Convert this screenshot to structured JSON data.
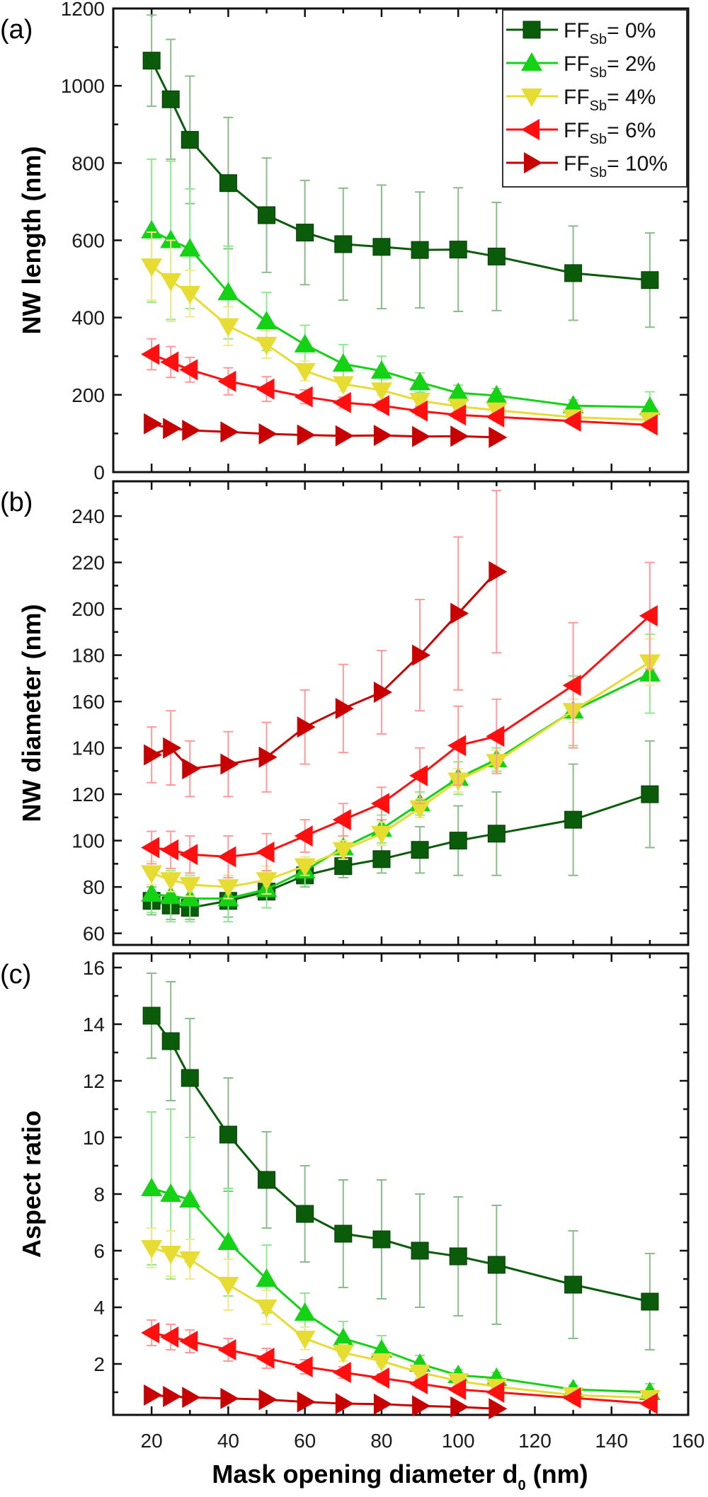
{
  "chart_data": [
    {
      "type": "line",
      "panel_label": "(a)",
      "title": "",
      "xlabel": "Mask opening diameter d0 (nm)",
      "ylabel": "NW length (nm)",
      "xlim": [
        10,
        160
      ],
      "ylim": [
        0,
        1200
      ],
      "yticks": [
        0,
        200,
        400,
        600,
        800,
        1000,
        1200
      ],
      "grid": false,
      "legend_position": "top-right",
      "series": [
        {
          "name": "FF_Sb= 0%",
          "x": [
            20,
            25,
            30,
            40,
            50,
            60,
            70,
            80,
            90,
            100,
            110,
            130,
            150
          ],
          "values": [
            1065,
            965,
            860,
            748,
            665,
            620,
            590,
            583,
            575,
            576,
            558,
            515,
            497
          ],
          "errors": [
            118,
            155,
            165,
            170,
            148,
            135,
            145,
            160,
            150,
            160,
            140,
            122,
            122
          ]
        },
        {
          "name": "FF_Sb= 2%",
          "x": [
            20,
            25,
            30,
            40,
            50,
            60,
            70,
            80,
            90,
            100,
            110,
            130,
            150
          ],
          "values": [
            625,
            600,
            578,
            465,
            390,
            330,
            280,
            262,
            232,
            205,
            198,
            172,
            168
          ],
          "errors": [
            185,
            205,
            155,
            120,
            75,
            50,
            50,
            38,
            25,
            20,
            18,
            15,
            40
          ]
        },
        {
          "name": "FF_Sb= 4%",
          "x": [
            20,
            25,
            30,
            40,
            50,
            60,
            70,
            80,
            90,
            100,
            110,
            130,
            150
          ],
          "values": [
            533,
            495,
            462,
            378,
            330,
            262,
            228,
            212,
            185,
            170,
            160,
            142,
            135
          ],
          "errors": [
            88,
            105,
            60,
            50,
            35,
            25,
            18,
            12,
            12,
            10,
            8,
            8,
            8
          ]
        },
        {
          "name": "FF_Sb= 6%",
          "x": [
            20,
            25,
            30,
            40,
            50,
            60,
            70,
            80,
            90,
            100,
            110,
            130,
            150
          ],
          "values": [
            305,
            285,
            265,
            235,
            215,
            195,
            180,
            172,
            158,
            148,
            143,
            132,
            122
          ],
          "errors": [
            40,
            40,
            32,
            35,
            32,
            18,
            14,
            12,
            12,
            10,
            8,
            8,
            6
          ]
        },
        {
          "name": "FF_Sb= 10%",
          "x": [
            20,
            25,
            30,
            40,
            50,
            60,
            70,
            80,
            90,
            100,
            110
          ],
          "values": [
            125,
            113,
            108,
            104,
            99,
            96,
            94,
            95,
            92,
            93,
            90
          ],
          "errors": [
            0,
            6,
            8,
            8,
            6,
            6,
            6,
            6,
            6,
            6,
            0
          ]
        }
      ]
    },
    {
      "type": "line",
      "panel_label": "(b)",
      "title": "",
      "xlabel": "Mask opening diameter d0 (nm)",
      "ylabel": "NW diameter (nm)",
      "xlim": [
        10,
        160
      ],
      "ylim": [
        55,
        255
      ],
      "yticks": [
        60,
        80,
        100,
        120,
        140,
        160,
        180,
        200,
        220,
        240
      ],
      "grid": false,
      "series": [
        {
          "name": "FF_Sb= 0%",
          "x": [
            20,
            25,
            30,
            40,
            50,
            60,
            70,
            80,
            90,
            100,
            110,
            130,
            150
          ],
          "values": [
            74,
            72,
            71,
            74,
            78,
            85,
            89,
            92,
            96,
            100,
            103,
            109,
            120
          ],
          "errors": [
            6,
            6,
            5,
            7,
            7,
            5,
            5,
            6,
            10,
            15,
            18,
            24,
            23
          ]
        },
        {
          "name": "FF_Sb= 2%",
          "x": [
            20,
            25,
            30,
            40,
            50,
            60,
            70,
            80,
            90,
            100,
            110,
            130,
            150
          ],
          "values": [
            77,
            76,
            75,
            75,
            79,
            87,
            97,
            105,
            116,
            127,
            135,
            156,
            172
          ],
          "errors": [
            8,
            11,
            10,
            10,
            8,
            6,
            5,
            6,
            5,
            7,
            5,
            15,
            17
          ]
        },
        {
          "name": "FF_Sb= 4%",
          "x": [
            20,
            25,
            30,
            40,
            50,
            60,
            70,
            80,
            90,
            100,
            110,
            130,
            150
          ],
          "values": [
            86,
            83,
            81,
            80,
            83,
            89,
            96,
            103,
            114,
            126,
            134,
            156,
            177
          ],
          "errors": [
            5,
            5,
            5,
            5,
            6,
            4,
            4,
            5,
            4,
            5,
            5,
            5,
            10
          ]
        },
        {
          "name": "FF_Sb= 6%",
          "x": [
            20,
            25,
            30,
            40,
            50,
            60,
            70,
            80,
            90,
            100,
            110,
            130,
            150
          ],
          "values": [
            97,
            96,
            94,
            93,
            95,
            102,
            109,
            116,
            128,
            141,
            145,
            167,
            197
          ],
          "errors": [
            7,
            8,
            8,
            9,
            8,
            7,
            7,
            7,
            12,
            17,
            16,
            27,
            23
          ]
        },
        {
          "name": "FF_Sb= 10%",
          "x": [
            20,
            25,
            30,
            40,
            50,
            60,
            70,
            80,
            90,
            100,
            110
          ],
          "values": [
            137,
            140,
            131,
            133,
            136,
            149,
            157,
            164,
            180,
            198,
            216
          ],
          "errors": [
            12,
            16,
            12,
            14,
            15,
            16,
            19,
            18,
            24,
            33,
            35
          ]
        }
      ]
    },
    {
      "type": "line",
      "panel_label": "(c)",
      "title": "",
      "xlabel": "Mask opening diameter d0 (nm)",
      "ylabel": "Aspect ratio",
      "xlim": [
        10,
        160
      ],
      "ylim": [
        0.2,
        16.5
      ],
      "yticks": [
        2,
        4,
        6,
        8,
        10,
        12,
        14,
        16
      ],
      "xticks": [
        20,
        40,
        60,
        80,
        100,
        120,
        140,
        160
      ],
      "grid": false,
      "series": [
        {
          "name": "FF_Sb= 0%",
          "x": [
            20,
            25,
            30,
            40,
            50,
            60,
            70,
            80,
            90,
            100,
            110,
            130,
            150
          ],
          "values": [
            14.3,
            13.4,
            12.1,
            10.1,
            8.5,
            7.3,
            6.6,
            6.4,
            6.0,
            5.8,
            5.5,
            4.8,
            4.2
          ],
          "errors": [
            1.5,
            2.1,
            2.1,
            2.0,
            1.7,
            1.7,
            1.9,
            2.1,
            2.0,
            2.1,
            2.1,
            1.9,
            1.7
          ]
        },
        {
          "name": "FF_Sb= 2%",
          "x": [
            20,
            25,
            30,
            40,
            50,
            60,
            70,
            80,
            90,
            100,
            110,
            130,
            150
          ],
          "values": [
            8.2,
            8.0,
            7.8,
            6.3,
            5.0,
            3.8,
            2.9,
            2.5,
            2.0,
            1.6,
            1.5,
            1.1,
            1.0
          ],
          "errors": [
            2.7,
            3.0,
            2.2,
            1.9,
            1.2,
            0.7,
            0.6,
            0.5,
            0.3,
            0.2,
            0.2,
            0.15,
            0.3
          ]
        },
        {
          "name": "FF_Sb= 4%",
          "x": [
            20,
            25,
            30,
            40,
            50,
            60,
            70,
            80,
            90,
            100,
            110,
            130,
            150
          ],
          "values": [
            6.1,
            5.9,
            5.7,
            4.8,
            4.0,
            2.9,
            2.4,
            2.1,
            1.7,
            1.4,
            1.2,
            0.9,
            0.8
          ],
          "errors": [
            0.7,
            0.8,
            0.7,
            0.9,
            0.6,
            0.4,
            0.3,
            0.2,
            0.2,
            0.15,
            0.15,
            0.1,
            0.1
          ]
        },
        {
          "name": "FF_Sb= 6%",
          "x": [
            20,
            25,
            30,
            40,
            50,
            60,
            70,
            80,
            90,
            100,
            110,
            130,
            150
          ],
          "values": [
            3.1,
            2.95,
            2.8,
            2.5,
            2.2,
            1.9,
            1.7,
            1.5,
            1.3,
            1.1,
            1.0,
            0.8,
            0.6
          ],
          "errors": [
            0.45,
            0.45,
            0.4,
            0.4,
            0.35,
            0.25,
            0.2,
            0.15,
            0.15,
            0.1,
            0.1,
            0.1,
            0.1
          ]
        },
        {
          "name": "FF_Sb= 10%",
          "x": [
            20,
            25,
            30,
            40,
            50,
            60,
            70,
            80,
            90,
            100,
            110
          ],
          "values": [
            0.9,
            0.85,
            0.82,
            0.78,
            0.74,
            0.66,
            0.6,
            0.58,
            0.52,
            0.48,
            0.42
          ],
          "errors": [
            0,
            0.05,
            0.05,
            0.05,
            0.05,
            0.05,
            0.05,
            0.05,
            0.05,
            0.05,
            0
          ]
        }
      ]
    }
  ],
  "legend": {
    "items": [
      {
        "prefix": "FF",
        "sub": "Sb",
        "suffix": "= 0%"
      },
      {
        "prefix": "FF",
        "sub": "Sb",
        "suffix": "= 2%"
      },
      {
        "prefix": "FF",
        "sub": "Sb",
        "suffix": "= 4%"
      },
      {
        "prefix": "FF",
        "sub": "Sb",
        "suffix": "= 6%"
      },
      {
        "prefix": "FF",
        "sub": "Sb",
        "suffix": "= 10%"
      }
    ]
  },
  "series_style": [
    {
      "color": "#0a5c0a",
      "err_color": "#8cbc8c",
      "marker": "square"
    },
    {
      "color": "#14d214",
      "err_color": "#8ee88e",
      "marker": "triangle-up"
    },
    {
      "color": "#e6dc32",
      "err_color": "#f0ea8c",
      "marker": "triangle-down"
    },
    {
      "color": "#ff1010",
      "err_color": "#ff9a9a",
      "marker": "triangle-left"
    },
    {
      "color": "#c80000",
      "err_color": "#ff9a9a",
      "marker": "triangle-right"
    }
  ],
  "xaxis": {
    "title_main": "Mask opening diameter d",
    "title_sub": "0",
    "title_tail": " (nm)",
    "tick_labels": [
      "20",
      "40",
      "60",
      "80",
      "100",
      "120",
      "140",
      "160"
    ]
  },
  "panels": [
    {
      "label": "(a)",
      "ylabel": "NW length (nm)"
    },
    {
      "label": "(b)",
      "ylabel": "NW diameter (nm)"
    },
    {
      "label": "(c)",
      "ylabel": "Aspect ratio"
    }
  ]
}
